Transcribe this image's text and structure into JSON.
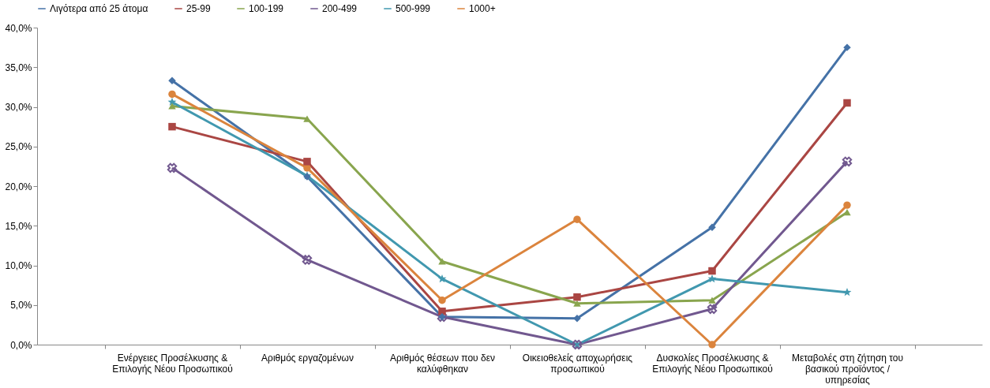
{
  "chart_data": {
    "type": "line",
    "categories": [
      "Ενέργειες Προσέλκυσης & Επιλογής Νέου Προσωπικού",
      "Αριθμός εργαζομένων",
      "Αριθμός θέσεων που δεν καλύφθηκαν",
      "Οικειοθελείς αποχωρήσεις προσωπικού",
      "Δυσκολίες Προσέλκυσης & Επιλογής Νέου Προσωπικού",
      "Μεταβολές στη ζήτηση του βασικού προϊόντος / υπηρεσίας"
    ],
    "series": [
      {
        "name": "Λιγότερα από 25 άτομα",
        "color": "#4572a7",
        "marker": "diamond",
        "values": [
          33.3,
          21.2,
          3.5,
          3.3,
          14.8,
          37.5
        ]
      },
      {
        "name": "25-99",
        "color": "#aa4643",
        "marker": "square",
        "values": [
          27.5,
          23.1,
          4.2,
          6.0,
          9.3,
          30.5
        ]
      },
      {
        "name": "100-199",
        "color": "#89a54e",
        "marker": "triangle",
        "values": [
          30.1,
          28.5,
          10.5,
          5.2,
          5.6,
          16.7
        ]
      },
      {
        "name": "200-499",
        "color": "#71588f",
        "marker": "cross",
        "values": [
          22.3,
          10.7,
          3.5,
          0.0,
          4.5,
          23.1
        ]
      },
      {
        "name": "500-999",
        "color": "#4198af",
        "marker": "star",
        "values": [
          30.6,
          21.3,
          8.3,
          0.0,
          8.3,
          6.6
        ]
      },
      {
        "name": "1000+",
        "color": "#db843d",
        "marker": "circle",
        "values": [
          31.6,
          22.3,
          5.6,
          15.8,
          0.0,
          17.6
        ]
      }
    ],
    "ylim": [
      0,
      40
    ],
    "yticks": [
      {
        "value": 0,
        "label": "0,0%"
      },
      {
        "value": 5,
        "label": "5,0%"
      },
      {
        "value": 10,
        "label": "10,0%"
      },
      {
        "value": 15,
        "label": "15,0%"
      },
      {
        "value": 20,
        "label": "20,0%"
      },
      {
        "value": 25,
        "label": "25,0%"
      },
      {
        "value": 30,
        "label": "30,0%"
      },
      {
        "value": 35,
        "label": "35,0%"
      },
      {
        "value": 40,
        "label": "40,0%"
      }
    ],
    "grid": false,
    "legend": "top",
    "line_style": "solid"
  }
}
